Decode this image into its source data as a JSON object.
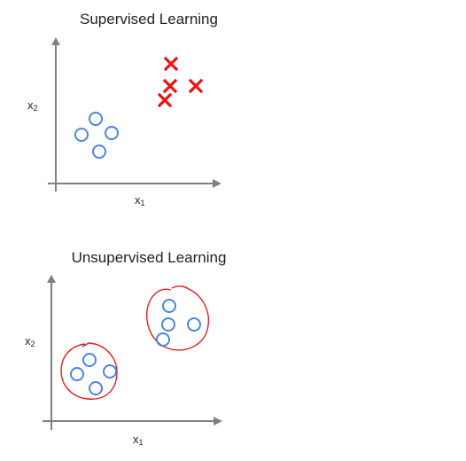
{
  "panels": [
    {
      "title": "Supervised Learning",
      "xlabel": {
        "base": "x",
        "sub": "1"
      },
      "ylabel": {
        "base": "x",
        "sub": "2"
      }
    },
    {
      "title": "Unsupervised Learning",
      "xlabel": {
        "base": "x",
        "sub": "1"
      },
      "ylabel": {
        "base": "x",
        "sub": "2"
      }
    }
  ],
  "colors": {
    "axis": "#808080",
    "circle_marker": "#4a86d8",
    "cross_marker": "#ee1111",
    "cluster_outline": "#e02020"
  }
}
